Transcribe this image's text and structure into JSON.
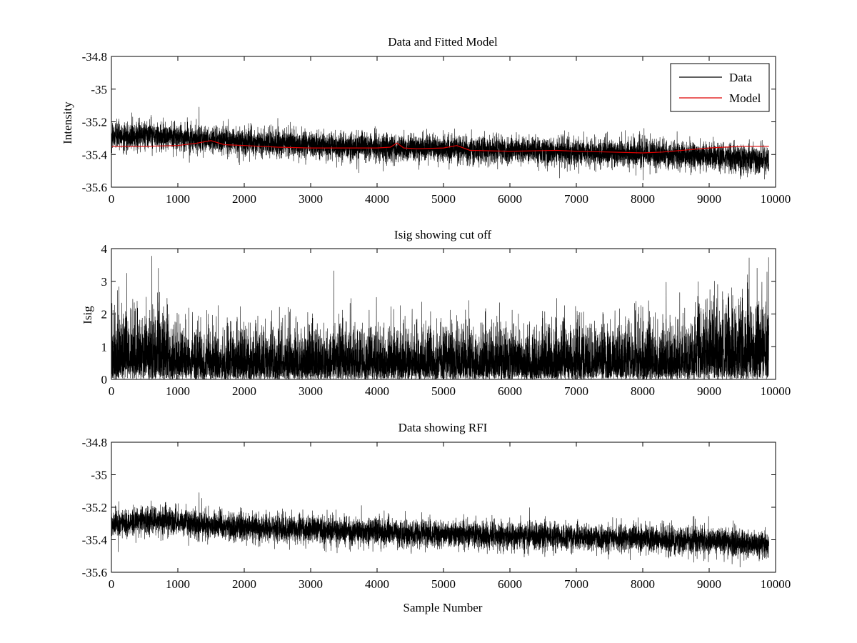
{
  "chart_data": [
    {
      "type": "line",
      "title": "Data and Fitted Model",
      "xlabel": "",
      "ylabel": "Intensity",
      "xlim": [
        0,
        10000
      ],
      "ylim": [
        -35.6,
        -34.8
      ],
      "xticks": [
        0,
        1000,
        2000,
        3000,
        4000,
        5000,
        6000,
        7000,
        8000,
        9000,
        10000
      ],
      "yticks": [
        -35.6,
        -35.4,
        -35.2,
        -35,
        -34.8
      ],
      "xtick_labels": [
        "0",
        "1000",
        "2000",
        "3000",
        "4000",
        "5000",
        "6000",
        "7000",
        "8000",
        "9000",
        "10000"
      ],
      "ytick_labels": [
        "-35.6",
        "-35.4",
        "-35.2",
        "-35",
        "-34.8"
      ],
      "legend_position": "top-right",
      "series": [
        {
          "name": "Data",
          "color": "#000000",
          "kind": "noise",
          "n_points": 9900,
          "trend_x": [
            0,
            600,
            1500,
            2500,
            3500,
            4500,
            5500,
            6500,
            7500,
            8500,
            9900
          ],
          "trend_y": [
            -35.3,
            -35.28,
            -35.31,
            -35.33,
            -35.35,
            -35.36,
            -35.37,
            -35.38,
            -35.39,
            -35.4,
            -35.43
          ],
          "noise_amplitude": [
            0.04,
            0.1
          ],
          "spikes": [
            {
              "x": 1320,
              "y": -35.11
            },
            {
              "x": 600,
              "y": -35.16
            }
          ]
        },
        {
          "name": "Model",
          "color": "#dd0000",
          "kind": "line",
          "x": [
            0,
            500,
            1000,
            1300,
            1500,
            1700,
            2000,
            2500,
            3000,
            3500,
            4000,
            4200,
            4300,
            4400,
            4600,
            5000,
            5200,
            5400,
            6000,
            6700,
            7000,
            7500,
            8000,
            8300,
            9000,
            9500,
            9900
          ],
          "y": [
            -35.35,
            -35.35,
            -35.345,
            -35.33,
            -35.315,
            -35.34,
            -35.345,
            -35.355,
            -35.36,
            -35.36,
            -35.36,
            -35.355,
            -35.33,
            -35.36,
            -35.365,
            -35.36,
            -35.345,
            -35.375,
            -35.38,
            -35.375,
            -35.38,
            -35.385,
            -35.39,
            -35.385,
            -35.36,
            -35.35,
            -35.35
          ]
        }
      ]
    },
    {
      "type": "line",
      "title": "Isig showing cut off",
      "xlabel": "",
      "ylabel": "Isig",
      "xlim": [
        0,
        10000
      ],
      "ylim": [
        0,
        4
      ],
      "xticks": [
        0,
        1000,
        2000,
        3000,
        4000,
        5000,
        6000,
        7000,
        8000,
        9000,
        10000
      ],
      "yticks": [
        0,
        1,
        2,
        3,
        4
      ],
      "xtick_labels": [
        "0",
        "1000",
        "2000",
        "3000",
        "4000",
        "5000",
        "6000",
        "7000",
        "8000",
        "9000",
        "10000"
      ],
      "ytick_labels": [
        "0",
        "1",
        "2",
        "3",
        "4"
      ],
      "series": [
        {
          "name": "Isig",
          "color": "#000000",
          "kind": "abs-noise",
          "n_points": 9900,
          "scale_x": [
            0,
            800,
            900,
            8700,
            8800,
            9900
          ],
          "scale_y": [
            1.0,
            1.0,
            0.75,
            0.75,
            1.05,
            1.15
          ],
          "max_value": 3.9
        }
      ]
    },
    {
      "type": "line",
      "title": "Data showing RFI",
      "xlabel": "Sample Number",
      "ylabel": "",
      "xlim": [
        0,
        10000
      ],
      "ylim": [
        -35.6,
        -34.8
      ],
      "xticks": [
        0,
        1000,
        2000,
        3000,
        4000,
        5000,
        6000,
        7000,
        8000,
        9000,
        10000
      ],
      "yticks": [
        -35.6,
        -35.4,
        -35.2,
        -35,
        -34.8
      ],
      "xtick_labels": [
        "0",
        "1000",
        "2000",
        "3000",
        "4000",
        "5000",
        "6000",
        "7000",
        "8000",
        "9000",
        "10000"
      ],
      "ytick_labels": [
        "-35.6",
        "-35.4",
        "-35.2",
        "-35",
        "-34.8"
      ],
      "series": [
        {
          "name": "Data",
          "color": "#000000",
          "kind": "noise",
          "n_points": 9900,
          "trend_x": [
            0,
            600,
            1500,
            2500,
            3500,
            4500,
            5500,
            6500,
            7500,
            8500,
            9900
          ],
          "trend_y": [
            -35.3,
            -35.28,
            -35.31,
            -35.33,
            -35.35,
            -35.36,
            -35.37,
            -35.38,
            -35.39,
            -35.4,
            -35.43
          ],
          "noise_amplitude": [
            0.04,
            0.1
          ],
          "spikes": [
            {
              "x": 1320,
              "y": -35.11
            },
            {
              "x": 600,
              "y": -35.16
            }
          ]
        }
      ]
    }
  ]
}
